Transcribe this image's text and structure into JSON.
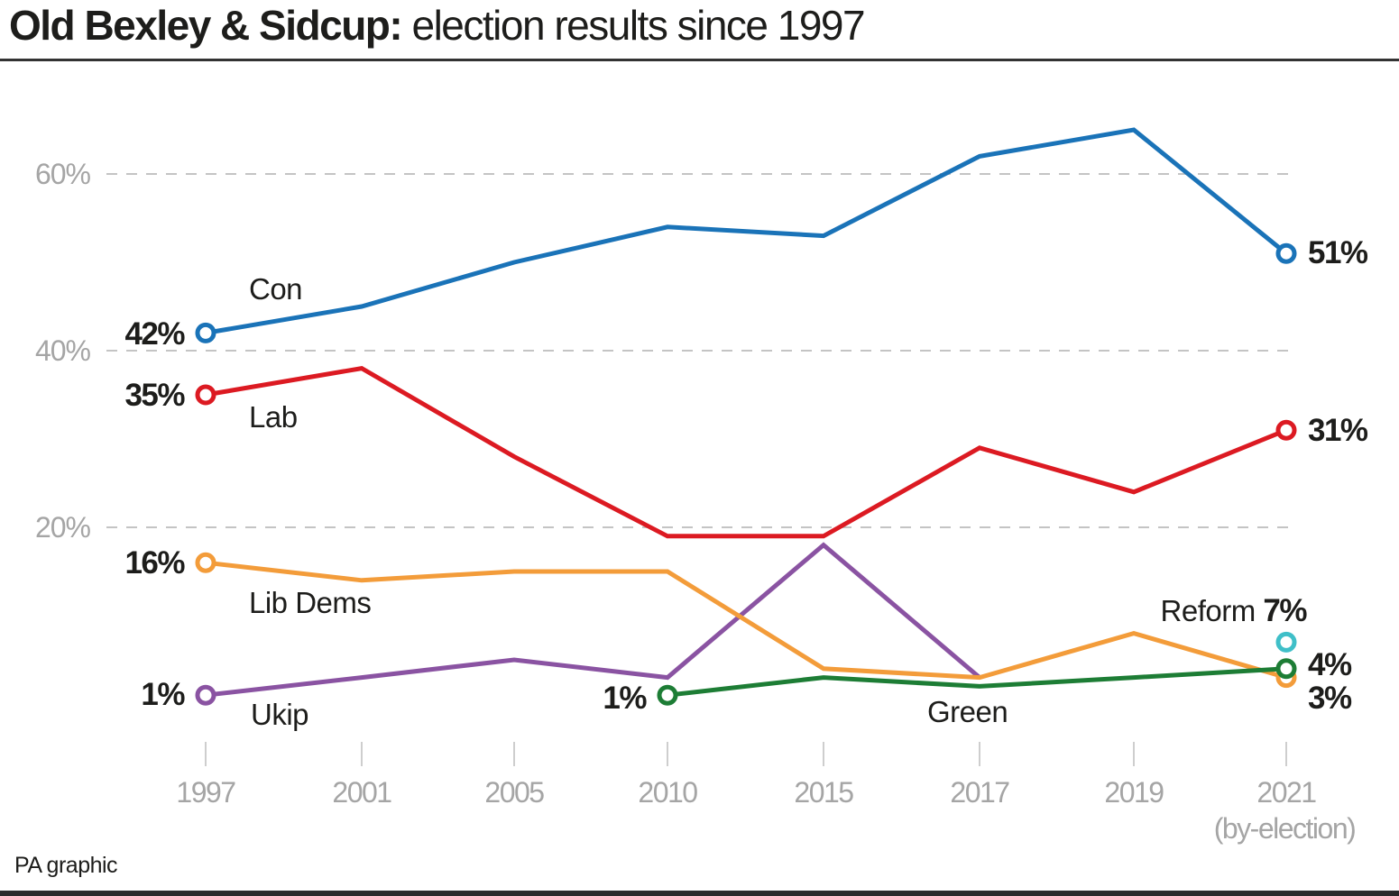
{
  "title": {
    "bold": "Old Bexley & Sidcup:",
    "regular": " election results since 1997"
  },
  "source": "PA graphic",
  "chart_data": {
    "type": "line",
    "title": "Old Bexley & Sidcup: election results since 1997",
    "xlabel": "",
    "ylabel": "",
    "categories": [
      "1997",
      "2001",
      "2005",
      "2010",
      "2015",
      "2017",
      "2019",
      "2021"
    ],
    "category_sublabels": [
      "",
      "",
      "",
      "",
      "",
      "",
      "",
      "(by-election)"
    ],
    "ylim": [
      0,
      70
    ],
    "yticks": [
      20,
      40,
      60
    ],
    "ytick_labels": [
      "20%",
      "40%",
      "60%"
    ],
    "grid": "horizontal dashed",
    "legend": "inline labels",
    "series": [
      {
        "name": "Con",
        "color": "#1a73b8",
        "values": [
          42,
          45,
          50,
          54,
          53,
          62,
          65,
          51
        ],
        "start_label": "42%",
        "end_label": "51%"
      },
      {
        "name": "Lab",
        "color": "#dc1a22",
        "values": [
          35,
          38,
          28,
          19,
          19,
          29,
          24,
          31
        ],
        "start_label": "35%",
        "end_label": "31%"
      },
      {
        "name": "Lib Dems",
        "color": "#f39c3a",
        "values": [
          16,
          14,
          15,
          15,
          4,
          3,
          8,
          3
        ],
        "start_label": "16%",
        "end_label": "3%"
      },
      {
        "name": "Ukip",
        "color": "#8a53a2",
        "values": [
          1,
          3,
          5,
          3,
          18,
          3,
          null,
          null
        ],
        "start_label": "1%",
        "end_label": ""
      },
      {
        "name": "Green",
        "color": "#1d7d35",
        "values": [
          null,
          null,
          null,
          1,
          3,
          2,
          3,
          4
        ],
        "start_label": "1%",
        "end_label": "4%"
      },
      {
        "name": "Reform",
        "color": "#3fbfc8",
        "values": [
          null,
          null,
          null,
          null,
          null,
          null,
          null,
          7
        ],
        "start_label": "",
        "end_label": "7%"
      }
    ]
  }
}
